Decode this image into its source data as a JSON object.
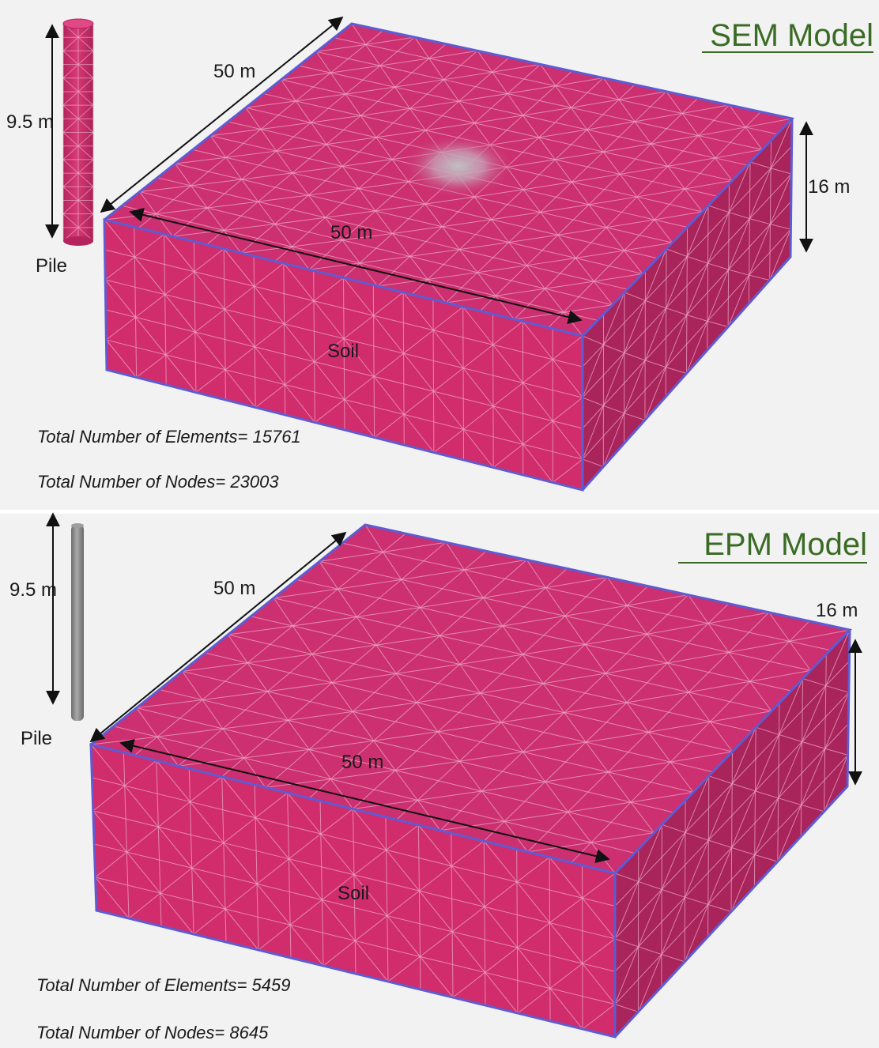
{
  "colors": {
    "soil": "#d12d6c",
    "soil_side": "#a8245a",
    "soil_top": "#cc3070",
    "mesh": "#e9a6c4",
    "edge": "#5e5bd3",
    "pile_sem": "#cf2d6a",
    "pile_epm": "#8e8e8e",
    "title": "#3a6b24",
    "panel_bg": "#f1f1f1"
  },
  "panels": [
    {
      "title": "SEM Model",
      "pile_label": "Pile",
      "soil_label": "Soil",
      "pile_height_label": "9.5 m",
      "depth_label": "16 m",
      "length_label_a": "50 m",
      "length_label_b": "50 m",
      "elements_text": "Total Number of Elements= 15761",
      "nodes_text": "Total Number of Nodes= 23003"
    },
    {
      "title": "EPM Model",
      "pile_label": "Pile",
      "soil_label": "Soil",
      "pile_height_label": "9.5 m",
      "depth_label": "16 m",
      "length_label_a": "50 m",
      "length_label_b": "50 m",
      "elements_text": "Total Number of Elements= 5459",
      "nodes_text": "Total Number of Nodes= 8645"
    }
  ]
}
